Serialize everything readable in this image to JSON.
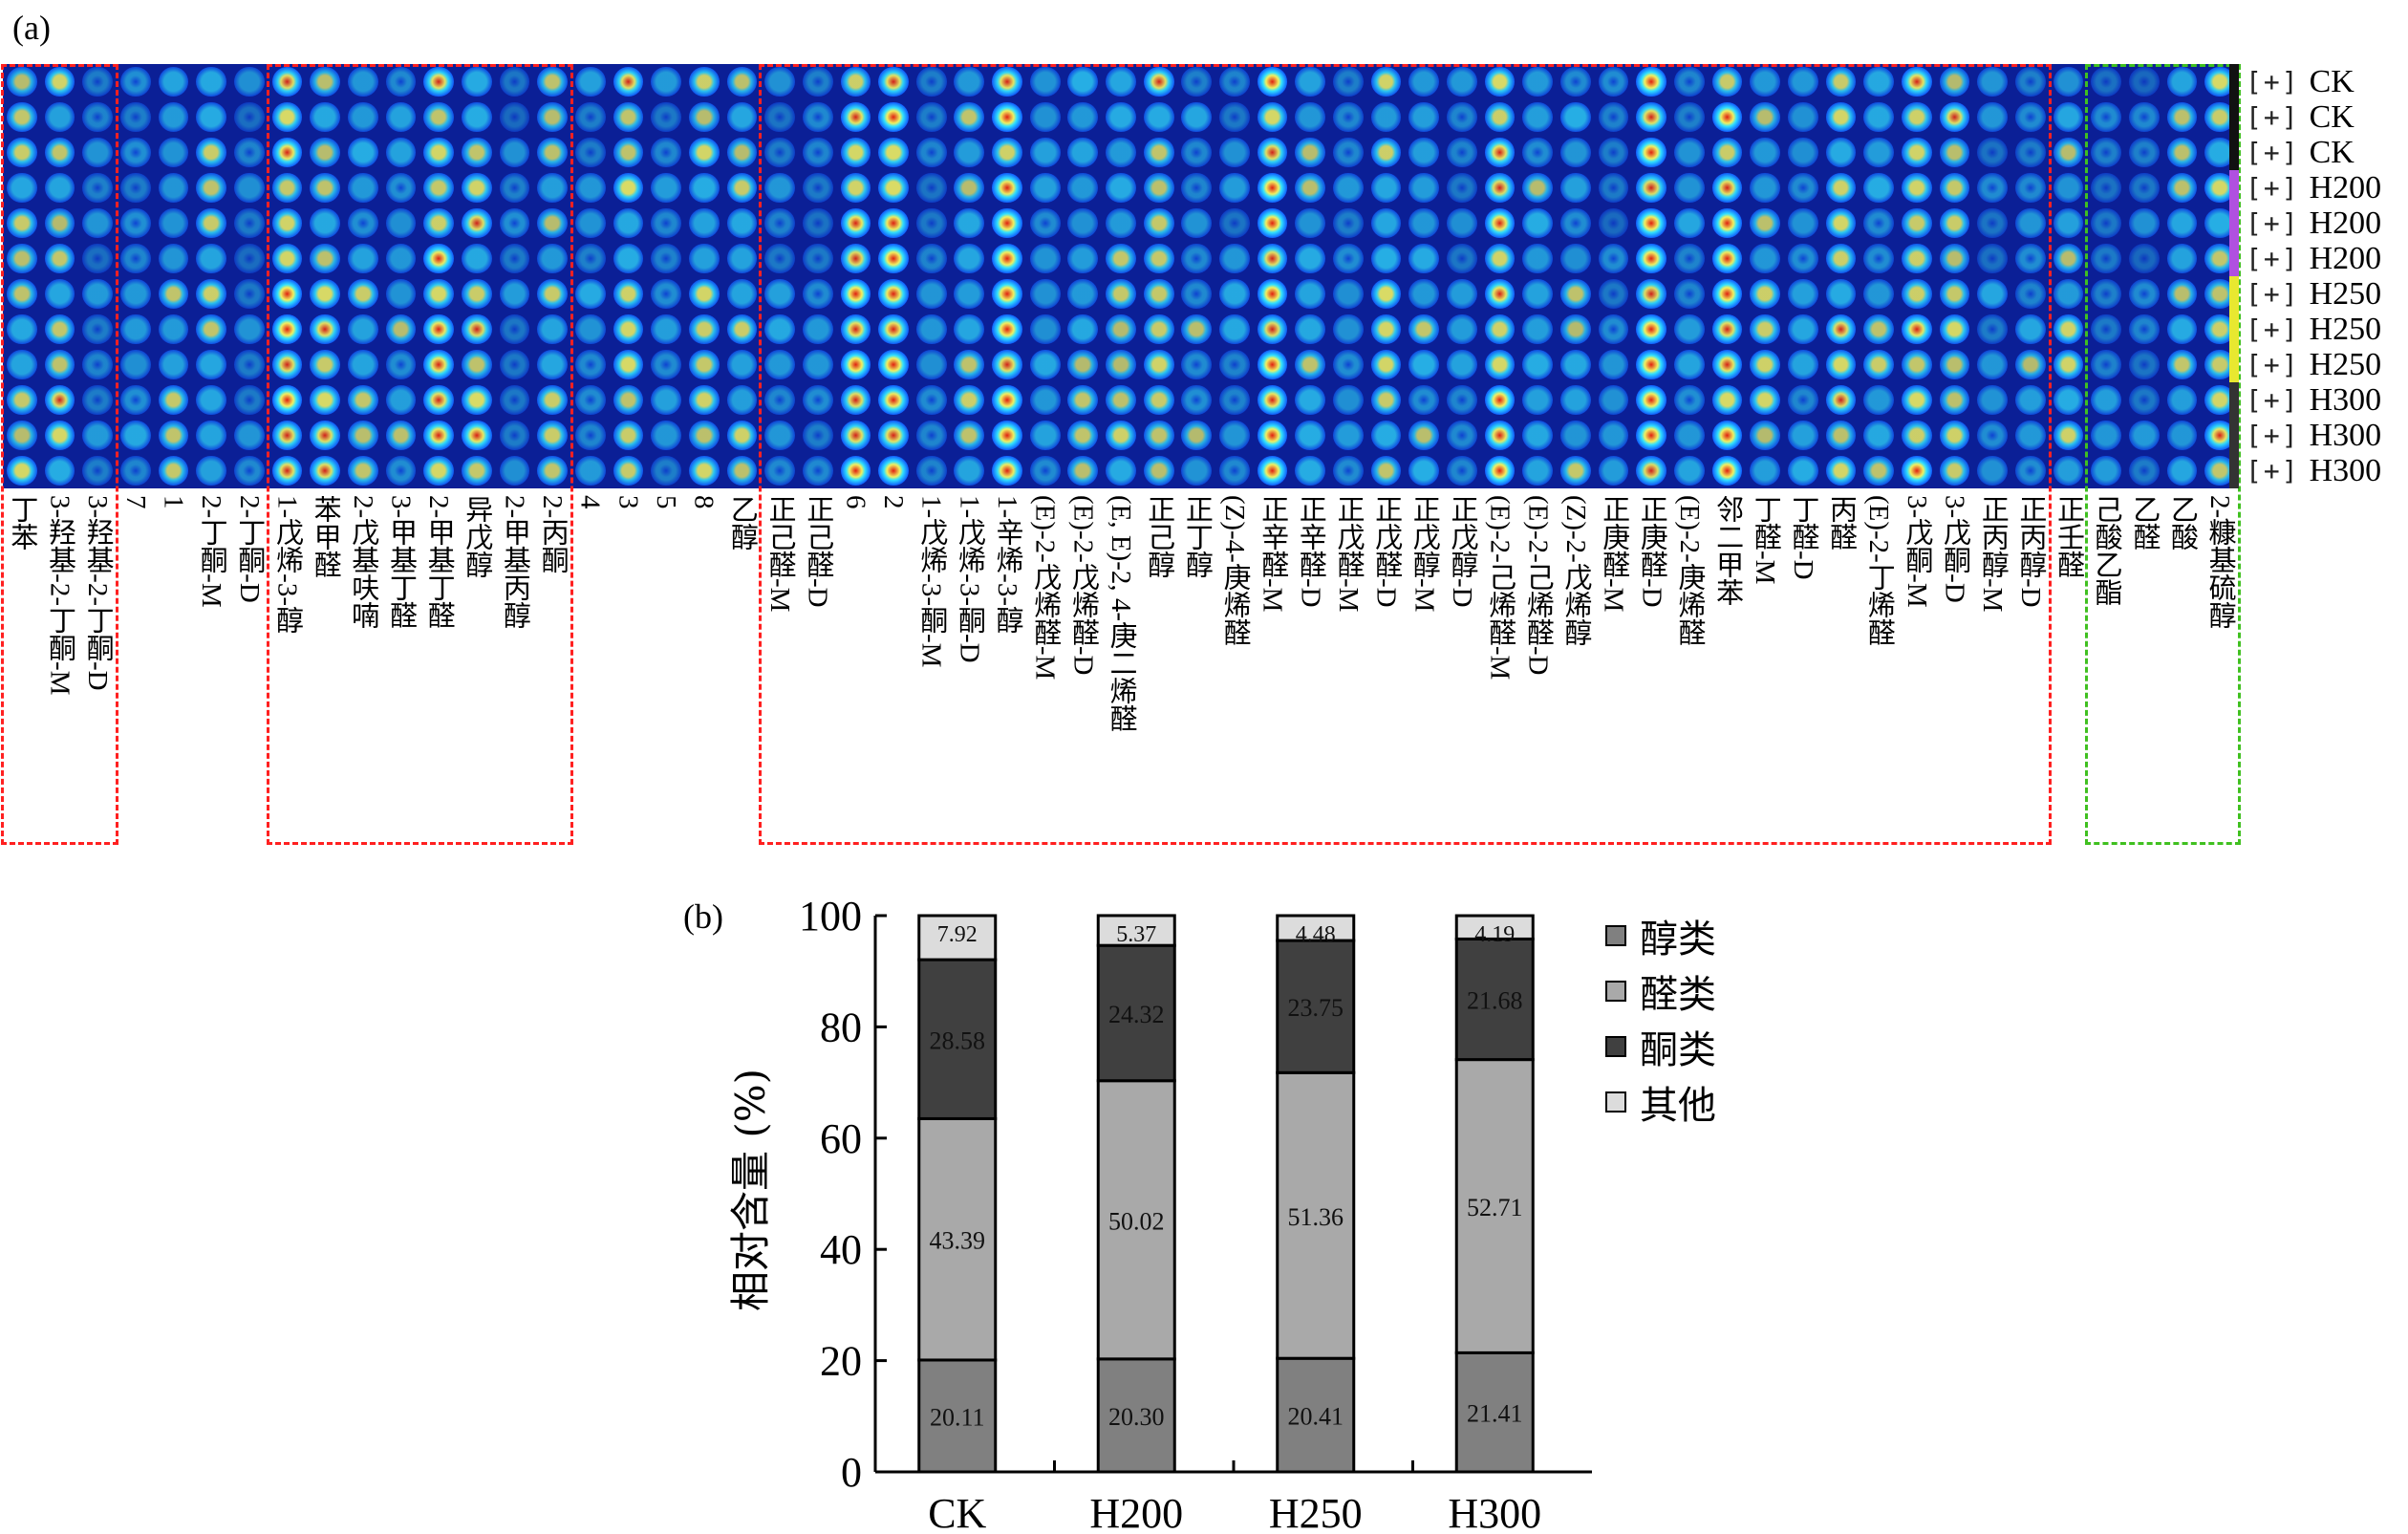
{
  "panel_a_label": "(a)",
  "panel_b_label": "(b)",
  "chart_data": [
    {
      "type": "heatmap",
      "columns": [
        "丁苯",
        "3-羟基-2-丁酮-M",
        "3-羟基-2-丁酮-D",
        "7",
        "1",
        "2-丁酮-M",
        "2-丁酮-D",
        "1-戊烯-3-醇",
        "苯甲醛",
        "2-戊基呋喃",
        "3-甲基丁醛",
        "2-甲基丁醛",
        "异戊醇",
        "2-甲基丙醇",
        "2-丙酮",
        "4",
        "3",
        "5",
        "8",
        "乙醇",
        "正己醛-M",
        "正己醛-D",
        "6",
        "2",
        "1-戊烯-3-酮-M",
        "1-戊烯-3-酮-D",
        "1-辛烯-3-醇",
        "(E)-2-戊烯醛-M",
        "(E)-2-戊烯醛-D",
        "(E, E)-2, 4-庚二烯醛",
        "正己醇",
        "正丁醇",
        "(Z)-4-庚烯醛",
        "正辛醛-M",
        "正辛醛-D",
        "正戊醛-M",
        "正戊醛-D",
        "正戊醇-M",
        "正戊醇-D",
        "(E)-2-己烯醛-M",
        "(E)-2-己烯醛-D",
        "(Z)-2-戊烯醇",
        "正庚醛-M",
        "正庚醛-D",
        "(E)-2-庚烯醛",
        "邻二甲苯",
        "丁醛-M",
        "丁醛-D",
        "丙醛",
        "(E)-2-丁烯醛",
        "3-戊酮-M",
        "3-戊酮-D",
        "正丙醇-M",
        "正丙醇-D",
        "正壬醛",
        "己酸乙酯",
        "乙醛",
        "乙酸",
        "2-糠基硫醇"
      ],
      "rows": [
        "CK",
        "CK",
        "CK",
        "H200",
        "H200",
        "H200",
        "H250",
        "H250",
        "H250",
        "H300",
        "H300",
        "H300"
      ],
      "row_marker": "[+]",
      "row_group_colors": {
        "CK": "#111111",
        "H200": "#b050e0",
        "H250": "#e8e830",
        "H300": "#333333"
      },
      "colormap": [
        "#0b1f96",
        "#1060ff",
        "#30e0ff",
        "#f0f060",
        "#e02010"
      ],
      "highlight_boxes": [
        {
          "color": "#ff2020",
          "columns": [
            "丁苯",
            "3-羟基-2-丁酮-D"
          ]
        },
        {
          "color": "#ff2020",
          "columns": [
            "1-戊烯-3-醇",
            "2-丙酮"
          ]
        },
        {
          "color": "#ff2020",
          "columns": [
            "正己醛-M",
            "正丙醇-D"
          ]
        },
        {
          "color": "#40c020",
          "columns": [
            "己酸乙酯",
            "2-糠基硫醇"
          ]
        }
      ]
    },
    {
      "type": "bar",
      "stacked": true,
      "categories": [
        "CK",
        "H200",
        "H250",
        "H300"
      ],
      "series": [
        {
          "name": "醇类",
          "color": "#808080",
          "values": [
            20.11,
            20.3,
            20.41,
            21.41
          ]
        },
        {
          "name": "醛类",
          "color": "#a9a9a9",
          "values": [
            43.39,
            50.02,
            51.36,
            52.71
          ]
        },
        {
          "name": "酮类",
          "color": "#404040",
          "values": [
            28.58,
            24.32,
            23.75,
            21.68
          ]
        },
        {
          "name": "其他",
          "color": "#dcdcdc",
          "values": [
            7.92,
            5.37,
            4.48,
            4.19
          ]
        }
      ],
      "ylabel": "相对含量 (%)",
      "ylim": [
        0,
        100
      ],
      "yticks": [
        "0",
        "20",
        "40",
        "60",
        "80",
        "100"
      ],
      "legend": "right",
      "grid": false
    }
  ]
}
